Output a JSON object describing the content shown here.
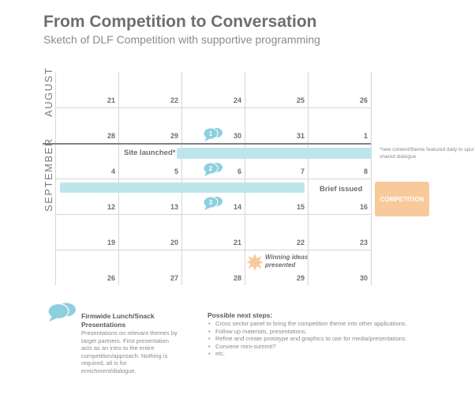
{
  "title": "From Competition to Conversation",
  "subtitle": "Sketch of DLF Competition with supportive programming",
  "months": {
    "august": "AUGUST",
    "september": "SEPTEMBER"
  },
  "calendar": {
    "rows": [
      [
        "21",
        "22",
        "24",
        "25",
        "26"
      ],
      [
        "28",
        "29",
        "30",
        "31",
        "1"
      ],
      [
        "4",
        "5",
        "6",
        "7",
        "8"
      ],
      [
        "12",
        "13",
        "14",
        "15",
        "16"
      ],
      [
        "19",
        "20",
        "21",
        "22",
        "23"
      ],
      [
        "26",
        "27",
        "28",
        "29",
        "30"
      ]
    ]
  },
  "events": {
    "site_launched": "Site launched*",
    "new_content_note": "*new content/theme featured daily to spur shared dialogue",
    "brief_issued": "Brief issued",
    "competition": "COMPETITION",
    "winning": "Winning ideas presented",
    "markers": [
      "1",
      "2",
      "3"
    ]
  },
  "lunch": {
    "title": "Firmwide Lunch/Snack Presentations",
    "body": "Presentations on relevant themes by target partners. First presentation acts as an intro to the entire competition/approach. Nothing is required, all is for enrichment/dialogue."
  },
  "next_steps": {
    "title": "Possible next steps:",
    "items": [
      "Cross sector panel to bring the competition theme into other applications.",
      "Follow up materials, presentations.",
      "Refine and create prototype and graphics to use for media/presentations",
      "Convene mini-summit?",
      "etc."
    ]
  },
  "colors": {
    "bar": "#bfe5ec",
    "bubble": "#8ecfdf",
    "competition": "#f8c99a",
    "star": "#f8c99a"
  }
}
